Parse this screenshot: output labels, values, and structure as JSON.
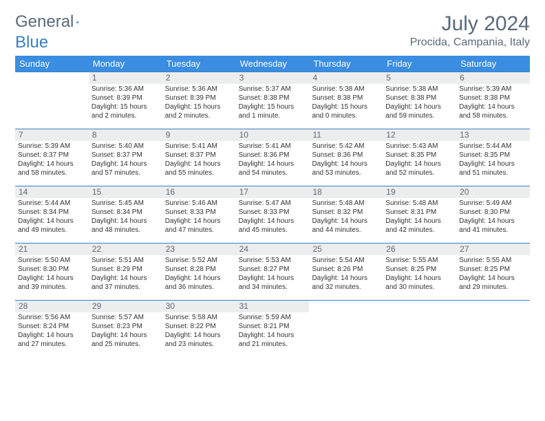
{
  "logo": {
    "text_gray": "General",
    "text_blue": "Blue"
  },
  "title": "July 2024",
  "location": "Procida, Campania, Italy",
  "colors": {
    "header_bar": "#3a8de0",
    "accent_line": "#3a7fc4",
    "text_muted": "#5a6a7a",
    "daynum_bg": "#eceded",
    "background": "#ffffff"
  },
  "day_headers": [
    "Sunday",
    "Monday",
    "Tuesday",
    "Wednesday",
    "Thursday",
    "Friday",
    "Saturday"
  ],
  "weeks": [
    [
      {
        "n": "",
        "sr": "",
        "ss": "",
        "dl": ""
      },
      {
        "n": "1",
        "sr": "5:36 AM",
        "ss": "8:39 PM",
        "dl": "15 hours and 2 minutes."
      },
      {
        "n": "2",
        "sr": "5:36 AM",
        "ss": "8:39 PM",
        "dl": "15 hours and 2 minutes."
      },
      {
        "n": "3",
        "sr": "5:37 AM",
        "ss": "8:38 PM",
        "dl": "15 hours and 1 minute."
      },
      {
        "n": "4",
        "sr": "5:38 AM",
        "ss": "8:38 PM",
        "dl": "15 hours and 0 minutes."
      },
      {
        "n": "5",
        "sr": "5:38 AM",
        "ss": "8:38 PM",
        "dl": "14 hours and 59 minutes."
      },
      {
        "n": "6",
        "sr": "5:39 AM",
        "ss": "8:38 PM",
        "dl": "14 hours and 58 minutes."
      }
    ],
    [
      {
        "n": "7",
        "sr": "5:39 AM",
        "ss": "8:37 PM",
        "dl": "14 hours and 58 minutes."
      },
      {
        "n": "8",
        "sr": "5:40 AM",
        "ss": "8:37 PM",
        "dl": "14 hours and 57 minutes."
      },
      {
        "n": "9",
        "sr": "5:41 AM",
        "ss": "8:37 PM",
        "dl": "14 hours and 55 minutes."
      },
      {
        "n": "10",
        "sr": "5:41 AM",
        "ss": "8:36 PM",
        "dl": "14 hours and 54 minutes."
      },
      {
        "n": "11",
        "sr": "5:42 AM",
        "ss": "8:36 PM",
        "dl": "14 hours and 53 minutes."
      },
      {
        "n": "12",
        "sr": "5:43 AM",
        "ss": "8:35 PM",
        "dl": "14 hours and 52 minutes."
      },
      {
        "n": "13",
        "sr": "5:44 AM",
        "ss": "8:35 PM",
        "dl": "14 hours and 51 minutes."
      }
    ],
    [
      {
        "n": "14",
        "sr": "5:44 AM",
        "ss": "8:34 PM",
        "dl": "14 hours and 49 minutes."
      },
      {
        "n": "15",
        "sr": "5:45 AM",
        "ss": "8:34 PM",
        "dl": "14 hours and 48 minutes."
      },
      {
        "n": "16",
        "sr": "5:46 AM",
        "ss": "8:33 PM",
        "dl": "14 hours and 47 minutes."
      },
      {
        "n": "17",
        "sr": "5:47 AM",
        "ss": "8:33 PM",
        "dl": "14 hours and 45 minutes."
      },
      {
        "n": "18",
        "sr": "5:48 AM",
        "ss": "8:32 PM",
        "dl": "14 hours and 44 minutes."
      },
      {
        "n": "19",
        "sr": "5:48 AM",
        "ss": "8:31 PM",
        "dl": "14 hours and 42 minutes."
      },
      {
        "n": "20",
        "sr": "5:49 AM",
        "ss": "8:30 PM",
        "dl": "14 hours and 41 minutes."
      }
    ],
    [
      {
        "n": "21",
        "sr": "5:50 AM",
        "ss": "8:30 PM",
        "dl": "14 hours and 39 minutes."
      },
      {
        "n": "22",
        "sr": "5:51 AM",
        "ss": "8:29 PM",
        "dl": "14 hours and 37 minutes."
      },
      {
        "n": "23",
        "sr": "5:52 AM",
        "ss": "8:28 PM",
        "dl": "14 hours and 36 minutes."
      },
      {
        "n": "24",
        "sr": "5:53 AM",
        "ss": "8:27 PM",
        "dl": "14 hours and 34 minutes."
      },
      {
        "n": "25",
        "sr": "5:54 AM",
        "ss": "8:26 PM",
        "dl": "14 hours and 32 minutes."
      },
      {
        "n": "26",
        "sr": "5:55 AM",
        "ss": "8:25 PM",
        "dl": "14 hours and 30 minutes."
      },
      {
        "n": "27",
        "sr": "5:55 AM",
        "ss": "8:25 PM",
        "dl": "14 hours and 29 minutes."
      }
    ],
    [
      {
        "n": "28",
        "sr": "5:56 AM",
        "ss": "8:24 PM",
        "dl": "14 hours and 27 minutes."
      },
      {
        "n": "29",
        "sr": "5:57 AM",
        "ss": "8:23 PM",
        "dl": "14 hours and 25 minutes."
      },
      {
        "n": "30",
        "sr": "5:58 AM",
        "ss": "8:22 PM",
        "dl": "14 hours and 23 minutes."
      },
      {
        "n": "31",
        "sr": "5:59 AM",
        "ss": "8:21 PM",
        "dl": "14 hours and 21 minutes."
      },
      {
        "n": "",
        "sr": "",
        "ss": "",
        "dl": ""
      },
      {
        "n": "",
        "sr": "",
        "ss": "",
        "dl": ""
      },
      {
        "n": "",
        "sr": "",
        "ss": "",
        "dl": ""
      }
    ]
  ],
  "labels": {
    "sunrise": "Sunrise:",
    "sunset": "Sunset:",
    "daylight": "Daylight:"
  }
}
